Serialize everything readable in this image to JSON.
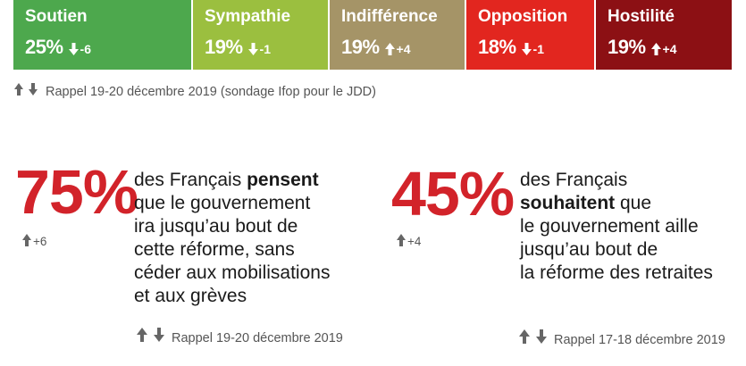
{
  "chart_data": {
    "type": "bar",
    "orientation": "horizontal-stacked",
    "categories": [
      "Soutien",
      "Sympathie",
      "Indifférence",
      "Opposition",
      "Hostilité"
    ],
    "values": [
      25,
      19,
      19,
      18,
      19
    ],
    "value_labels": [
      "25%",
      "19%",
      "19%",
      "18%",
      "19%"
    ],
    "deltas": [
      -6,
      -1,
      4,
      -1,
      4
    ],
    "delta_labels": [
      "-6",
      "-1",
      "+4",
      "-1",
      "+4"
    ],
    "colors": [
      "#4da84d",
      "#9bbf3f",
      "#a59467",
      "#e2261f",
      "#8c1014"
    ],
    "unit": "%"
  },
  "top_note": "Rappel 19-20 décembre 2019 (sondage Ifop pour le JDD)",
  "stat_left": {
    "value": "75%",
    "delta": "+6",
    "text_lines": [
      {
        "pre": "des Français ",
        "bold": "pensent",
        "post": ""
      },
      {
        "pre": "que le gouvernement",
        "bold": "",
        "post": ""
      },
      {
        "pre": "ira jusqu’au bout de",
        "bold": "",
        "post": ""
      },
      {
        "pre": "cette réforme, sans",
        "bold": "",
        "post": ""
      },
      {
        "pre": "céder aux mobilisations",
        "bold": "",
        "post": ""
      },
      {
        "pre": "et aux grèves",
        "bold": "",
        "post": ""
      }
    ],
    "note": "Rappel 19-20 décembre 2019"
  },
  "stat_right": {
    "value": "45%",
    "delta": "+4",
    "text_lines": [
      {
        "pre": "des Français",
        "bold": "",
        "post": ""
      },
      {
        "pre": "",
        "bold": "souhaitent",
        "post": " que"
      },
      {
        "pre": "le gouvernement aille",
        "bold": "",
        "post": ""
      },
      {
        "pre": "jusqu’au bout de",
        "bold": "",
        "post": ""
      },
      {
        "pre": "la réforme des retraites",
        "bold": "",
        "post": ""
      }
    ],
    "note": "Rappel 17-18 décembre 2019"
  }
}
